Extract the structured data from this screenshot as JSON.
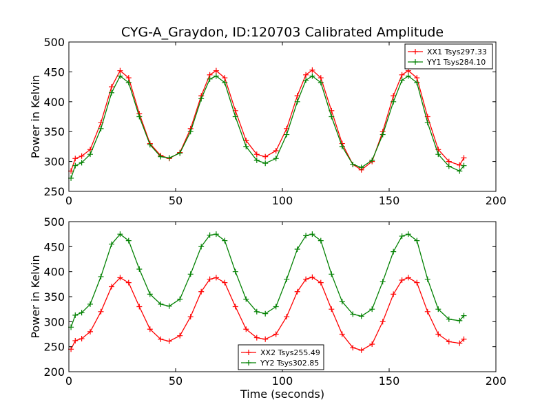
{
  "title": "CYG-A_Graydon, ID:120703 Calibrated Amplitude",
  "colors": {
    "red": "#ff0000",
    "green": "#008000"
  },
  "chart_data": [
    {
      "type": "line",
      "ylabel": "Power in Kelvin",
      "xlabel": "",
      "xlim": [
        0,
        200
      ],
      "ylim": [
        250,
        500
      ],
      "xticks": [
        0,
        50,
        100,
        150,
        200
      ],
      "yticks": [
        250,
        300,
        350,
        400,
        450,
        500
      ],
      "xtick_labels": [
        "0",
        "50",
        "100",
        "150",
        "200"
      ],
      "ytick_labels": [
        "250",
        "300",
        "350",
        "400",
        "450",
        "500"
      ],
      "legend_position": "upper right",
      "series": [
        {
          "name": "XX1 Tsys297.33",
          "color": "#ff0000",
          "marker": "+",
          "x": [
            1,
            3,
            6,
            10,
            15,
            20,
            24,
            28,
            33,
            38,
            43,
            47,
            52,
            57,
            62,
            66,
            69,
            73,
            78,
            83,
            88,
            92,
            97,
            102,
            107,
            111,
            114,
            118,
            123,
            128,
            133,
            137,
            142,
            147,
            152,
            156,
            159,
            163,
            168,
            173,
            178,
            183,
            185
          ],
          "values": [
            284,
            305,
            309,
            320,
            365,
            425,
            452,
            440,
            380,
            330,
            310,
            305,
            315,
            355,
            410,
            445,
            452,
            440,
            385,
            335,
            312,
            308,
            318,
            355,
            410,
            445,
            453,
            440,
            385,
            330,
            295,
            286,
            300,
            350,
            410,
            445,
            452,
            440,
            375,
            320,
            300,
            294,
            306
          ]
        },
        {
          "name": "YY1 Tsys284.10",
          "color": "#008000",
          "marker": "+",
          "x": [
            1,
            3,
            6,
            10,
            15,
            20,
            24,
            28,
            33,
            38,
            43,
            47,
            52,
            57,
            62,
            66,
            69,
            73,
            78,
            83,
            88,
            92,
            97,
            102,
            107,
            111,
            114,
            118,
            123,
            128,
            133,
            137,
            142,
            147,
            152,
            156,
            159,
            163,
            168,
            173,
            178,
            183,
            185
          ],
          "values": [
            272,
            293,
            298,
            312,
            355,
            415,
            443,
            432,
            375,
            328,
            308,
            306,
            314,
            350,
            405,
            438,
            443,
            432,
            375,
            325,
            302,
            297,
            305,
            345,
            400,
            436,
            443,
            432,
            375,
            325,
            295,
            290,
            302,
            345,
            400,
            436,
            443,
            432,
            365,
            312,
            292,
            284,
            293
          ]
        }
      ]
    },
    {
      "type": "line",
      "ylabel": "Power in Kelvin",
      "xlabel": "Time (seconds)",
      "xlim": [
        0,
        200
      ],
      "ylim": [
        200,
        500
      ],
      "xticks": [
        0,
        50,
        100,
        150,
        200
      ],
      "yticks": [
        200,
        250,
        300,
        350,
        400,
        450,
        500
      ],
      "xtick_labels": [
        "0",
        "50",
        "100",
        "150",
        "200"
      ],
      "ytick_labels": [
        "200",
        "250",
        "300",
        "350",
        "400",
        "450",
        "500"
      ],
      "legend_position": "lower center",
      "series": [
        {
          "name": "XX2 Tsys255.49",
          "color": "#ff0000",
          "marker": "+",
          "x": [
            1,
            3,
            6,
            10,
            15,
            20,
            24,
            28,
            33,
            38,
            43,
            47,
            52,
            57,
            62,
            66,
            69,
            73,
            78,
            83,
            88,
            92,
            97,
            102,
            107,
            111,
            114,
            118,
            123,
            128,
            133,
            137,
            142,
            147,
            152,
            156,
            159,
            163,
            168,
            173,
            178,
            183,
            185
          ],
          "values": [
            245,
            262,
            266,
            280,
            320,
            370,
            388,
            378,
            330,
            285,
            265,
            261,
            272,
            310,
            360,
            385,
            388,
            378,
            330,
            285,
            268,
            265,
            275,
            310,
            360,
            385,
            389,
            378,
            325,
            275,
            248,
            243,
            255,
            300,
            355,
            383,
            388,
            378,
            320,
            275,
            260,
            257,
            265
          ]
        },
        {
          "name": "YY2 Tsys302.85",
          "color": "#008000",
          "marker": "+",
          "x": [
            1,
            3,
            6,
            10,
            15,
            20,
            24,
            28,
            33,
            38,
            43,
            47,
            52,
            57,
            62,
            66,
            69,
            73,
            78,
            83,
            88,
            92,
            97,
            102,
            107,
            111,
            114,
            118,
            123,
            128,
            133,
            137,
            142,
            147,
            152,
            156,
            159,
            163,
            168,
            173,
            178,
            183,
            185
          ],
          "values": [
            289,
            313,
            318,
            335,
            390,
            455,
            475,
            462,
            405,
            355,
            335,
            331,
            345,
            395,
            450,
            473,
            475,
            462,
            400,
            345,
            320,
            316,
            330,
            385,
            445,
            472,
            475,
            462,
            395,
            340,
            315,
            311,
            325,
            380,
            440,
            471,
            475,
            462,
            385,
            325,
            305,
            302,
            312
          ]
        }
      ]
    }
  ]
}
